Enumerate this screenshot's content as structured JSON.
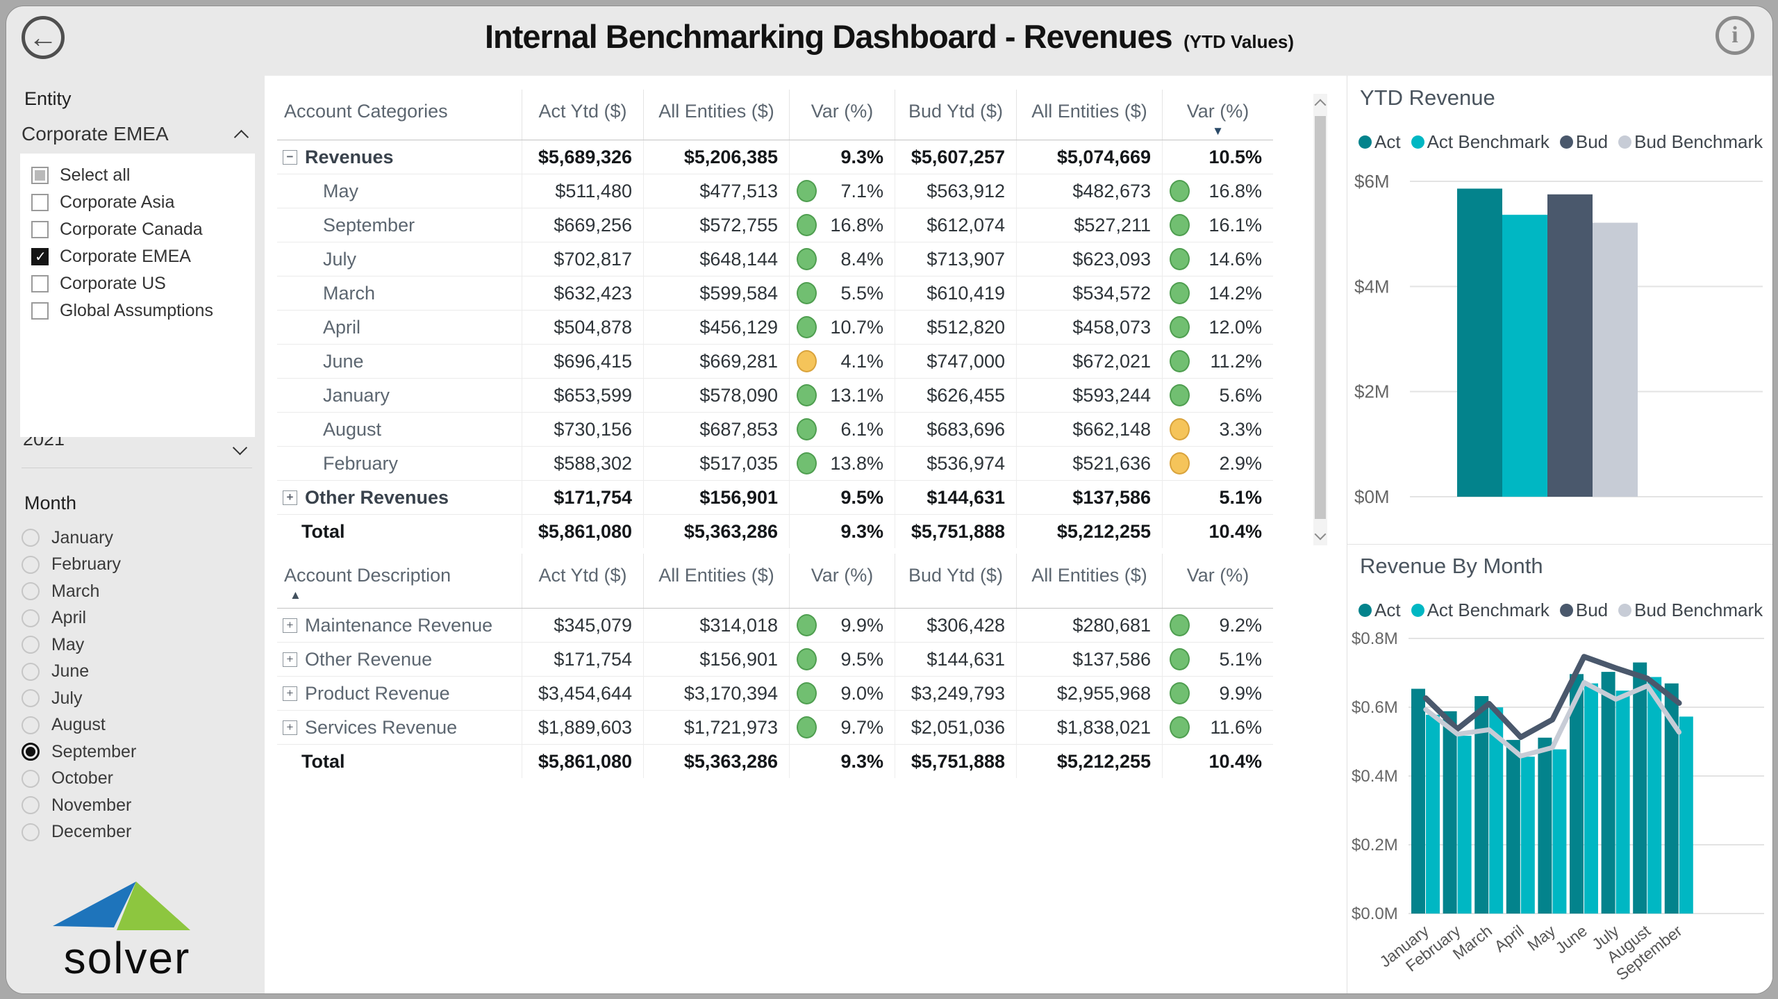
{
  "header": {
    "title": "Internal Benchmarking Dashboard - Revenues",
    "subtitle": "(YTD Values)",
    "back_icon": "←",
    "info_icon": "i"
  },
  "sidebar": {
    "entity_label": "Entity",
    "entity_dropdown_value": "Corporate EMEA",
    "entity_options": [
      {
        "label": "Select all",
        "state": "partial"
      },
      {
        "label": "Corporate Asia",
        "state": "unchecked"
      },
      {
        "label": "Corporate Canada",
        "state": "unchecked"
      },
      {
        "label": "Corporate EMEA",
        "state": "checked"
      },
      {
        "label": "Corporate US",
        "state": "unchecked"
      },
      {
        "label": "Global Assumptions",
        "state": "unchecked"
      }
    ],
    "year_dropdown_value": "2021",
    "month_label": "Month",
    "months": [
      "January",
      "February",
      "March",
      "April",
      "May",
      "June",
      "July",
      "August",
      "September",
      "October",
      "November",
      "December"
    ],
    "selected_month": "September",
    "logo_text": "solver"
  },
  "table1": {
    "columns": [
      "Account Categories",
      "Act Ytd ($)",
      "All Entities ($)",
      "Var (%)",
      "Bud Ytd ($)",
      "All Entities ($)",
      "Var (%)"
    ],
    "sort": {
      "index": 6,
      "dir": "desc"
    },
    "rows": [
      {
        "label": "Revenues",
        "level": 0,
        "expand": "minus",
        "bold": true,
        "act": "$5,689,326",
        "all1": "$5,206,385",
        "var1": "9.3%",
        "var1_dot": null,
        "bud": "$5,607,257",
        "all2": "$5,074,669",
        "var2": "10.5%",
        "var2_dot": null
      },
      {
        "label": "May",
        "level": 1,
        "act": "$511,480",
        "all1": "$477,513",
        "var1": "7.1%",
        "var1_dot": "green",
        "bud": "$563,912",
        "all2": "$482,673",
        "var2": "16.8%",
        "var2_dot": "green"
      },
      {
        "label": "September",
        "level": 1,
        "act": "$669,256",
        "all1": "$572,755",
        "var1": "16.8%",
        "var1_dot": "green",
        "bud": "$612,074",
        "all2": "$527,211",
        "var2": "16.1%",
        "var2_dot": "green"
      },
      {
        "label": "July",
        "level": 1,
        "act": "$702,817",
        "all1": "$648,144",
        "var1": "8.4%",
        "var1_dot": "green",
        "bud": "$713,907",
        "all2": "$623,093",
        "var2": "14.6%",
        "var2_dot": "green"
      },
      {
        "label": "March",
        "level": 1,
        "act": "$632,423",
        "all1": "$599,584",
        "var1": "5.5%",
        "var1_dot": "green",
        "bud": "$610,419",
        "all2": "$534,572",
        "var2": "14.2%",
        "var2_dot": "green"
      },
      {
        "label": "April",
        "level": 1,
        "act": "$504,878",
        "all1": "$456,129",
        "var1": "10.7%",
        "var1_dot": "green",
        "bud": "$512,820",
        "all2": "$458,073",
        "var2": "12.0%",
        "var2_dot": "green"
      },
      {
        "label": "June",
        "level": 1,
        "act": "$696,415",
        "all1": "$669,281",
        "var1": "4.1%",
        "var1_dot": "amber",
        "bud": "$747,000",
        "all2": "$672,021",
        "var2": "11.2%",
        "var2_dot": "green"
      },
      {
        "label": "January",
        "level": 1,
        "act": "$653,599",
        "all1": "$578,090",
        "var1": "13.1%",
        "var1_dot": "green",
        "bud": "$626,455",
        "all2": "$593,244",
        "var2": "5.6%",
        "var2_dot": "green"
      },
      {
        "label": "August",
        "level": 1,
        "act": "$730,156",
        "all1": "$687,853",
        "var1": "6.1%",
        "var1_dot": "green",
        "bud": "$683,696",
        "all2": "$662,148",
        "var2": "3.3%",
        "var2_dot": "amber"
      },
      {
        "label": "February",
        "level": 1,
        "act": "$588,302",
        "all1": "$517,035",
        "var1": "13.8%",
        "var1_dot": "green",
        "bud": "$536,974",
        "all2": "$521,636",
        "var2": "2.9%",
        "var2_dot": "amber"
      },
      {
        "label": "Other Revenues",
        "level": 0,
        "expand": "plus",
        "bold": true,
        "act": "$171,754",
        "all1": "$156,901",
        "var1": "9.5%",
        "var1_dot": null,
        "bud": "$144,631",
        "all2": "$137,586",
        "var2": "5.1%",
        "var2_dot": null
      },
      {
        "label": "Total",
        "level": 0,
        "bold": true,
        "total": true,
        "act": "$5,861,080",
        "all1": "$5,363,286",
        "var1": "9.3%",
        "var1_dot": null,
        "bud": "$5,751,888",
        "all2": "$5,212,255",
        "var2": "10.4%",
        "var2_dot": null
      }
    ]
  },
  "table2": {
    "columns": [
      "Account Description",
      "Act Ytd ($)",
      "All Entities ($)",
      "Var (%)",
      "Bud Ytd ($)",
      "All Entities ($)",
      "Var (%)"
    ],
    "sort": {
      "index": 0,
      "dir": "asc"
    },
    "rows": [
      {
        "label": "Maintenance Revenue",
        "level": 0,
        "expand": "plus",
        "act": "$345,079",
        "all1": "$314,018",
        "var1": "9.9%",
        "var1_dot": "green",
        "bud": "$306,428",
        "all2": "$280,681",
        "var2": "9.2%",
        "var2_dot": "green"
      },
      {
        "label": "Other Revenue",
        "level": 0,
        "expand": "plus",
        "act": "$171,754",
        "all1": "$156,901",
        "var1": "9.5%",
        "var1_dot": "green",
        "bud": "$144,631",
        "all2": "$137,586",
        "var2": "5.1%",
        "var2_dot": "green"
      },
      {
        "label": "Product Revenue",
        "level": 0,
        "expand": "plus",
        "act": "$3,454,644",
        "all1": "$3,170,394",
        "var1": "9.0%",
        "var1_dot": "green",
        "bud": "$3,249,793",
        "all2": "$2,955,968",
        "var2": "9.9%",
        "var2_dot": "green"
      },
      {
        "label": "Services Revenue",
        "level": 0,
        "expand": "plus",
        "act": "$1,889,603",
        "all1": "$1,721,973",
        "var1": "9.7%",
        "var1_dot": "green",
        "bud": "$2,051,036",
        "all2": "$1,838,021",
        "var2": "11.6%",
        "var2_dot": "green"
      },
      {
        "label": "Total",
        "level": 0,
        "bold": true,
        "total": true,
        "act": "$5,861,080",
        "all1": "$5,363,286",
        "var1": "9.3%",
        "var1_dot": null,
        "bud": "$5,751,888",
        "all2": "$5,212,255",
        "var2": "10.4%",
        "var2_dot": null
      }
    ]
  },
  "colors": {
    "act": "#03838C",
    "act_benchmark": "#00B7C3",
    "bud": "#4A586C",
    "bud_benchmark": "#C7CCD6",
    "var_green": "#71BF71",
    "var_amber": "#F5C45A",
    "logo_blue": "#1E74BB",
    "logo_green": "#8DC63F"
  },
  "chart_data": [
    {
      "type": "bar",
      "title": "YTD Revenue",
      "legend": [
        "Act",
        "Act Benchmark",
        "Bud",
        "Bud Benchmark"
      ],
      "series": [
        {
          "name": "Act",
          "value": 5861080
        },
        {
          "name": "Act Benchmark",
          "value": 5363286
        },
        {
          "name": "Bud",
          "value": 5751888
        },
        {
          "name": "Bud Benchmark",
          "value": 5212255
        }
      ],
      "ylim": [
        0,
        6000000
      ],
      "yticks": [
        {
          "v": 0,
          "label": "$0M"
        },
        {
          "v": 2000000,
          "label": "$2M"
        },
        {
          "v": 4000000,
          "label": "$4M"
        },
        {
          "v": 6000000,
          "label": "$6M"
        }
      ],
      "grid": true,
      "legend_position": "top"
    },
    {
      "type": "bar+line",
      "title": "Revenue By Month",
      "legend": [
        "Act",
        "Act Benchmark",
        "Bud",
        "Bud Benchmark"
      ],
      "categories": [
        "January",
        "February",
        "March",
        "April",
        "May",
        "June",
        "July",
        "August",
        "September"
      ],
      "bar_series": [
        {
          "name": "Act",
          "values": [
            653599,
            588302,
            632423,
            504878,
            511480,
            696415,
            702817,
            730156,
            669256
          ]
        },
        {
          "name": "Act Benchmark",
          "values": [
            578090,
            517035,
            599584,
            456129,
            477513,
            669281,
            648144,
            687853,
            572755
          ]
        }
      ],
      "line_series": [
        {
          "name": "Bud",
          "values": [
            626455,
            536974,
            610419,
            512820,
            563912,
            747000,
            713907,
            683696,
            612074
          ]
        },
        {
          "name": "Bud Benchmark",
          "values": [
            593244,
            521636,
            534572,
            458073,
            482673,
            672021,
            623093,
            662148,
            527211
          ]
        }
      ],
      "ylim": [
        0,
        800000
      ],
      "yticks": [
        {
          "v": 0,
          "label": "$0.0M"
        },
        {
          "v": 200000,
          "label": "$0.2M"
        },
        {
          "v": 400000,
          "label": "$0.4M"
        },
        {
          "v": 600000,
          "label": "$0.6M"
        },
        {
          "v": 800000,
          "label": "$0.8M"
        }
      ],
      "grid": true,
      "legend_position": "top"
    }
  ]
}
